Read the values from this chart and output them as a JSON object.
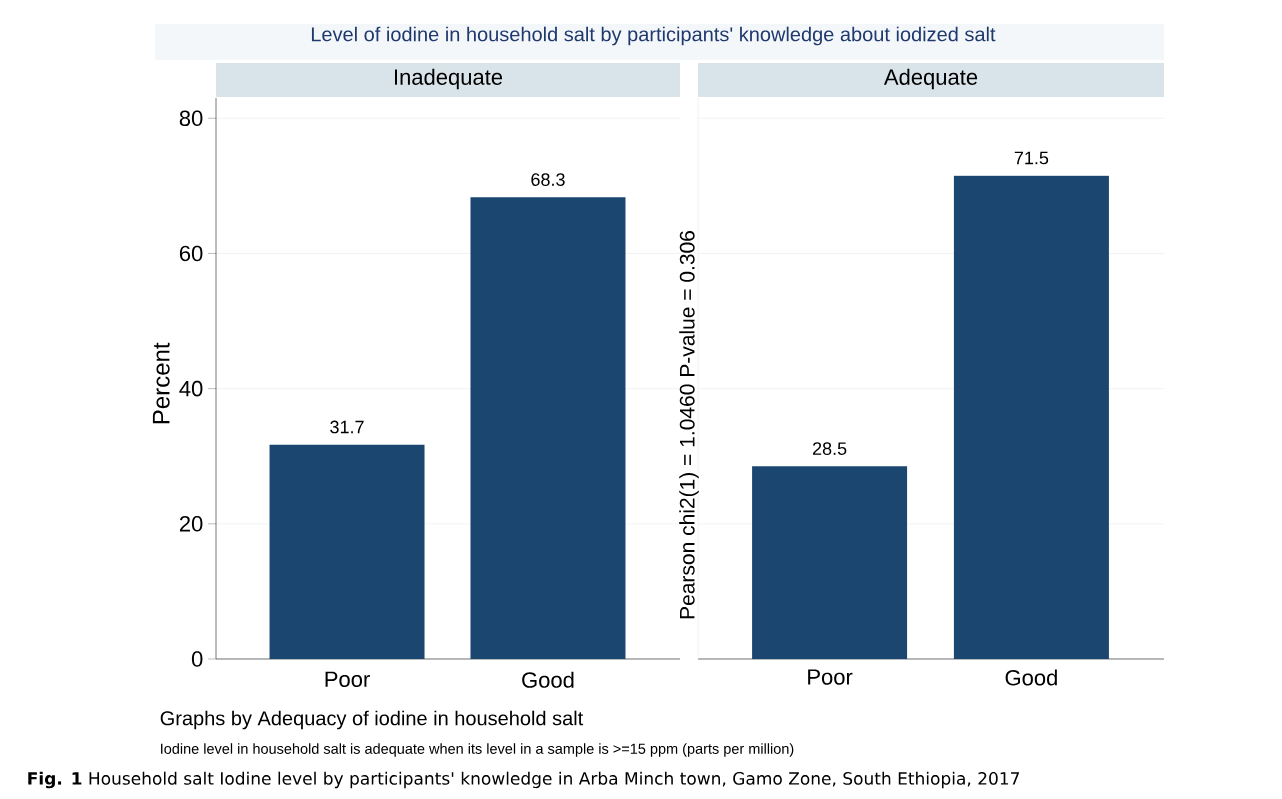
{
  "chart_data": [
    {
      "type": "bar",
      "title": "Inadequate",
      "ylabel": "Percent",
      "categories": [
        "Poor",
        "Good"
      ],
      "values": [
        31.7,
        68.3
      ],
      "color": "#1a4670",
      "ylim": [
        0,
        83
      ],
      "yticks": [
        0,
        20,
        40,
        60,
        80
      ],
      "grid": "y",
      "data_labels": true,
      "annotations": [
        "Level of iodine in household salt by participants' knowledge about iodized salt",
        "Pearson chi2(1) = 1.0460 P-value = 0.306",
        "Graphs by Adequacy of iodine in household salt",
        "Iodine level in household salt is adequate when its level in a sample is >=15 ppm (parts per million)",
        "**Fig. 1** Household salt Iodine level by participants' knowledge in Arba Minch town, Gamo Zone, South Ethiopia, 2017"
      ]
    },
    {
      "type": "bar",
      "title": "Adequate",
      "categories": [
        "Poor",
        "Good"
      ],
      "values": [
        28.5,
        71.5
      ],
      "color": "#1a4670",
      "ylim": [
        0,
        83
      ],
      "yticks": [
        0,
        20,
        40,
        60,
        80
      ],
      "grid": "y",
      "data_labels": true,
      "tick_labels": "x"
    }
  ]
}
